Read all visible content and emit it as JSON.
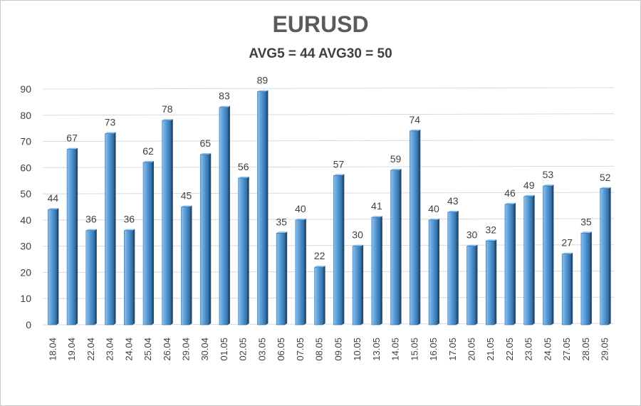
{
  "chart_data": {
    "type": "bar",
    "title": "EURUSD",
    "subtitle": "AVG5 = 44 AVG30 = 50",
    "xlabel": "",
    "ylabel": "",
    "ylim": [
      0,
      90
    ],
    "yticks": [
      0,
      10,
      20,
      30,
      40,
      50,
      60,
      70,
      80,
      90
    ],
    "grid": true,
    "categories": [
      "18.04",
      "19.04",
      "22.04",
      "23.04",
      "24.04",
      "25.04",
      "26.04",
      "29.04",
      "30.04",
      "01.05",
      "02.05",
      "03.05",
      "06.05",
      "07.05",
      "08.05",
      "09.05",
      "10.05",
      "13.05",
      "14.05",
      "15.05",
      "16.05",
      "17.05",
      "20.05",
      "21.05",
      "22.05",
      "23.05",
      "24.05",
      "27.05",
      "28.05",
      "29.05"
    ],
    "values": [
      44,
      67,
      36,
      73,
      36,
      62,
      78,
      45,
      65,
      83,
      56,
      89,
      35,
      40,
      22,
      57,
      30,
      41,
      59,
      74,
      40,
      43,
      30,
      32,
      46,
      49,
      53,
      27,
      35,
      52
    ],
    "colors": {
      "bar_light": "#8ec1ec",
      "bar_mid": "#5b9bd5",
      "bar_dark": "#2f6fa8",
      "bar_side": "#1f4e79",
      "grid": "#d9d9d9",
      "text": "#404040"
    }
  }
}
